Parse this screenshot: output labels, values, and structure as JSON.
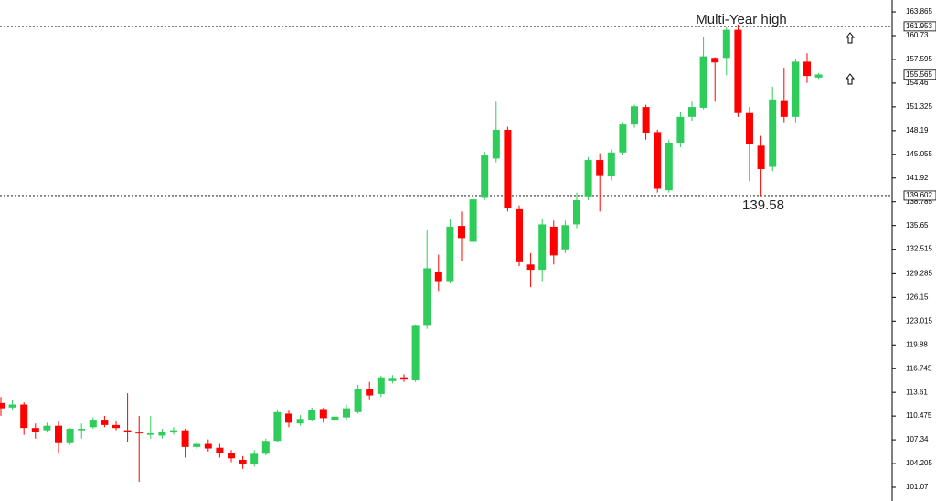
{
  "chart_data": {
    "type": "candlestick",
    "annotations": [
      "Multi-Year high",
      "139.58"
    ],
    "ylim": [
      99.26,
      165.44
    ],
    "yticks": [
      163.865,
      160.73,
      157.595,
      154.46,
      151.325,
      148.19,
      145.055,
      141.92,
      138.785,
      135.65,
      132.515,
      129.285,
      126.15,
      123.015,
      119.88,
      116.745,
      113.61,
      110.475,
      107.34,
      104.205,
      101.07
    ],
    "levels": [
      161.953,
      139.602
    ],
    "last_price": 155.565,
    "up_color": "#2ecc5a",
    "down_color": "#ff0000",
    "series": [
      {
        "open": [
          112.2,
          111.6,
          112.0,
          108.9,
          108.6,
          109.2,
          106.9,
          108.6,
          109.0,
          110.0,
          109.3,
          108.6,
          108.3,
          108.0,
          107.9,
          108.3,
          108.6,
          106.4,
          106.8,
          106.3,
          105.6,
          104.7,
          104.2,
          105.5,
          107.2,
          110.8,
          109.5,
          110.0,
          111.4,
          110.0,
          110.3,
          111.0,
          114.0,
          113.4,
          115.1,
          115.6,
          115.2,
          122.4,
          129.5,
          128.3,
          135.6,
          133.5,
          139.3,
          144.5,
          148.3,
          137.8,
          130.5,
          129.8,
          135.5,
          132.5,
          135.8,
          139.5,
          144.3,
          142.2,
          145.3,
          149.0,
          151.3,
          148.0,
          140.3,
          146.6,
          150.0,
          151.2,
          157.8,
          157.8,
          161.5,
          150.5,
          146.2,
          143.4,
          152.2,
          150.0,
          157.3,
          155.2
        ],
        "high": [
          113.0,
          112.6,
          112.3,
          109.5,
          109.6,
          109.8,
          108.9,
          109.5,
          110.3,
          110.5,
          109.8,
          113.5,
          110.5,
          110.5,
          108.8,
          109.0,
          108.8,
          107.0,
          107.4,
          106.8,
          106.0,
          105.2,
          106.0,
          107.5,
          111.3,
          111.2,
          110.6,
          111.6,
          111.6,
          110.9,
          112.0,
          114.6,
          115.0,
          115.8,
          115.9,
          116.0,
          122.6,
          135.0,
          131.8,
          136.5,
          137.5,
          140.0,
          145.4,
          152.0,
          148.7,
          138.3,
          132.0,
          136.5,
          136.3,
          136.3,
          140.0,
          144.7,
          145.2,
          145.7,
          149.3,
          151.6,
          151.6,
          148.3,
          147.0,
          150.6,
          152.0,
          160.5,
          157.9,
          161.9,
          162.2,
          151.3,
          147.5,
          154.0,
          156.5,
          157.6,
          158.4,
          155.8
        ],
        "low": [
          110.5,
          111.3,
          108.0,
          107.5,
          108.3,
          105.5,
          106.7,
          107.5,
          108.8,
          109.0,
          108.6,
          107.0,
          101.8,
          107.5,
          107.5,
          108.0,
          105.0,
          106.1,
          105.8,
          105.0,
          104.4,
          103.5,
          103.8,
          105.3,
          107.0,
          109.0,
          109.2,
          109.8,
          109.6,
          109.6,
          110.0,
          110.8,
          112.7,
          113.0,
          114.8,
          115.0,
          115.0,
          122.0,
          127.0,
          128.0,
          131.0,
          133.0,
          139.0,
          144.0,
          137.5,
          130.3,
          127.5,
          128.3,
          130.5,
          132.0,
          135.3,
          139.0,
          137.5,
          141.6,
          145.0,
          148.6,
          147.0,
          140.0,
          140.0,
          146.0,
          149.5,
          151.0,
          152.0,
          155.5,
          150.0,
          141.5,
          139.58,
          142.8,
          149.3,
          149.3,
          154.5,
          155.0
        ],
        "close": [
          111.5,
          112.0,
          108.9,
          108.4,
          109.2,
          106.9,
          108.8,
          108.8,
          110.0,
          109.3,
          108.9,
          108.4,
          108.2,
          108.2,
          108.4,
          108.6,
          106.4,
          106.8,
          106.2,
          105.6,
          104.9,
          104.2,
          105.5,
          107.2,
          111.0,
          109.6,
          110.1,
          111.3,
          110.2,
          110.4,
          111.5,
          114.1,
          113.2,
          115.6,
          115.4,
          115.3,
          122.4,
          130.0,
          128.3,
          135.5,
          134.0,
          139.1,
          144.9,
          148.3,
          137.9,
          130.8,
          129.8,
          135.8,
          131.7,
          135.7,
          139.0,
          144.3,
          142.3,
          145.3,
          149.0,
          151.4,
          147.9,
          140.5,
          146.6,
          150.0,
          151.3,
          158.0,
          157.2,
          161.5,
          150.5,
          146.4,
          143.1,
          152.3,
          150.0,
          157.3,
          155.4,
          155.6
        ]
      }
    ]
  }
}
